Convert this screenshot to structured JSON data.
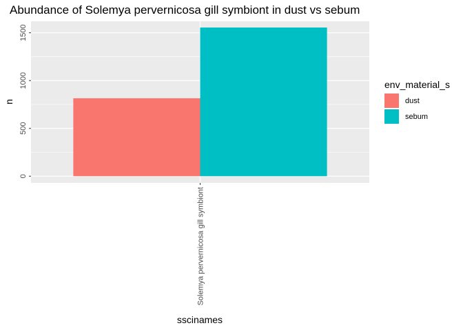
{
  "chart_data": {
    "type": "bar",
    "title": "Abundance of Solemya pervernicosa gill symbiont in dust vs sebum",
    "xlabel": "sscinames",
    "ylabel": "n",
    "categories": [
      "Solemya pervernicosa gill symbiont"
    ],
    "series": [
      {
        "name": "dust",
        "values": [
          815
        ],
        "color": "#F8766D"
      },
      {
        "name": "sebum",
        "values": [
          1555
        ],
        "color": "#00BFC4"
      }
    ],
    "ylim": [
      -70,
      1620
    ],
    "yticks": [
      0,
      500,
      1000,
      1500
    ],
    "grid": true,
    "legend": {
      "title": "env_material_s",
      "position": "right"
    }
  }
}
